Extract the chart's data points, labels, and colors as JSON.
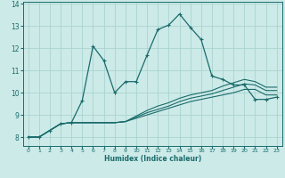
{
  "xlabel": "Humidex (Indice chaleur)",
  "bg_color": "#cceae8",
  "grid_color": "#aad4d0",
  "line_color": "#1a6b6b",
  "xlim": [
    -0.5,
    23.5
  ],
  "ylim": [
    7.6,
    14.1
  ],
  "xticks": [
    0,
    1,
    2,
    3,
    4,
    5,
    6,
    7,
    8,
    9,
    10,
    11,
    12,
    13,
    14,
    15,
    16,
    17,
    18,
    19,
    20,
    21,
    22,
    23
  ],
  "yticks": [
    8,
    9,
    10,
    11,
    12,
    13,
    14
  ],
  "line_main": {
    "x": [
      0,
      1,
      2,
      3,
      4,
      5,
      6,
      7,
      8,
      9,
      10,
      11,
      12,
      13,
      14,
      15,
      16,
      17,
      18,
      19,
      20,
      21,
      22,
      23
    ],
    "y": [
      8.0,
      8.0,
      8.3,
      8.6,
      8.65,
      9.65,
      12.1,
      11.45,
      10.0,
      10.5,
      10.5,
      11.7,
      12.85,
      13.05,
      13.55,
      12.95,
      12.4,
      10.75,
      10.6,
      10.35,
      10.35,
      9.7,
      9.7,
      9.8
    ]
  },
  "lines_flat": [
    [
      8.0,
      8.0,
      8.3,
      8.6,
      8.65,
      8.65,
      8.65,
      8.65,
      8.65,
      8.7,
      8.85,
      9.0,
      9.15,
      9.3,
      9.45,
      9.6,
      9.7,
      9.8,
      9.9,
      10.0,
      10.15,
      10.15,
      9.9,
      9.9
    ],
    [
      8.0,
      8.0,
      8.3,
      8.6,
      8.65,
      8.65,
      8.65,
      8.65,
      8.65,
      8.7,
      8.9,
      9.1,
      9.25,
      9.4,
      9.6,
      9.75,
      9.85,
      9.95,
      10.1,
      10.25,
      10.4,
      10.35,
      10.1,
      10.1
    ],
    [
      8.0,
      8.0,
      8.3,
      8.6,
      8.65,
      8.65,
      8.65,
      8.65,
      8.65,
      8.7,
      8.95,
      9.2,
      9.4,
      9.55,
      9.75,
      9.9,
      10.0,
      10.1,
      10.3,
      10.45,
      10.6,
      10.5,
      10.25,
      10.25
    ]
  ]
}
